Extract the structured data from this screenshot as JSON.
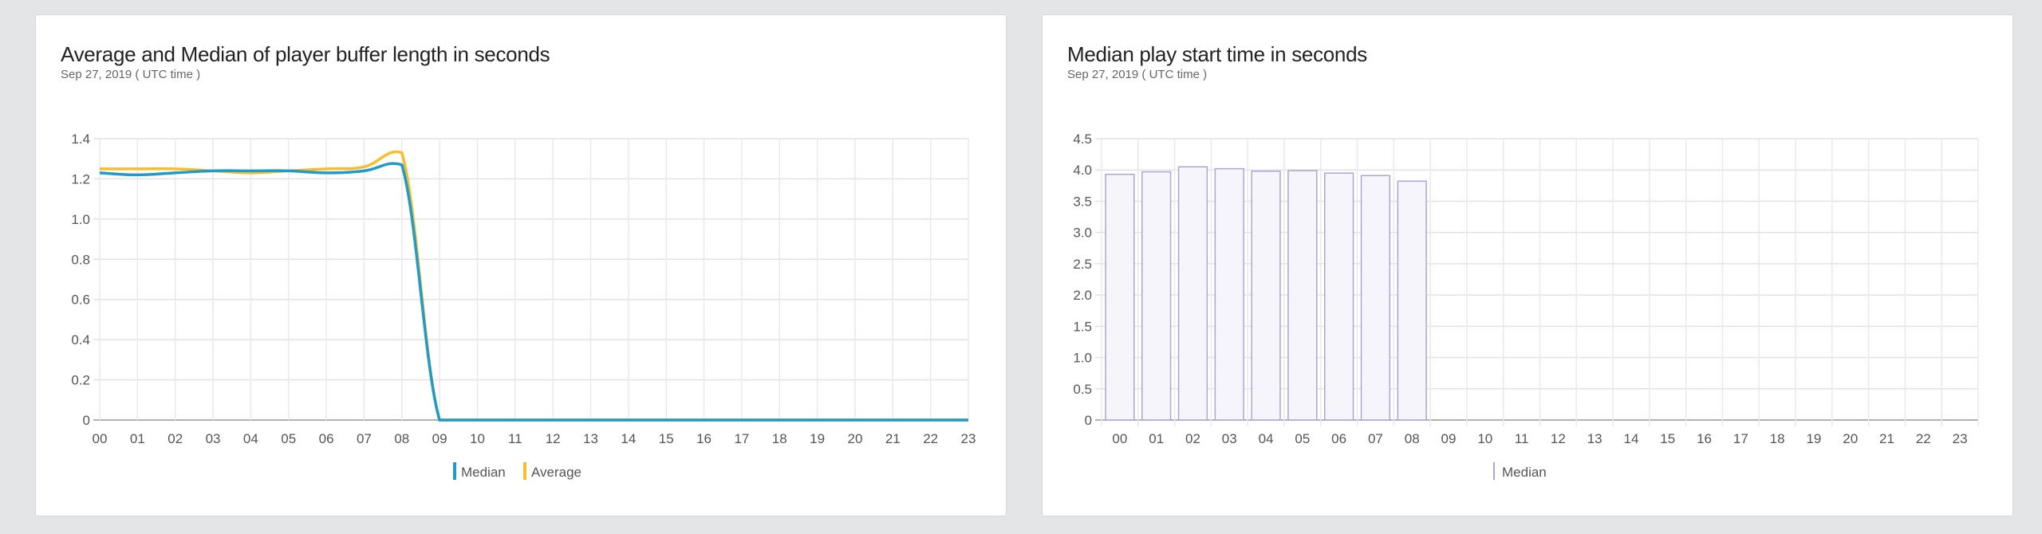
{
  "chart_data": [
    {
      "type": "line",
      "title": "Average and Median of player buffer length in seconds",
      "subtitle": "Sep 27, 2019   ( UTC time )",
      "categories": [
        "00",
        "01",
        "02",
        "03",
        "04",
        "05",
        "06",
        "07",
        "08",
        "09",
        "10",
        "11",
        "12",
        "13",
        "14",
        "15",
        "16",
        "17",
        "18",
        "19",
        "20",
        "21",
        "22",
        "23"
      ],
      "yticks": [
        "0",
        "0.2",
        "0.4",
        "0.6",
        "0.8",
        "1.0",
        "1.2",
        "1.4"
      ],
      "ylim": [
        0,
        1.4
      ],
      "grid": true,
      "legend_position": "bottom",
      "series": [
        {
          "name": "Median",
          "color": "#1f9bc9",
          "values": [
            1.23,
            1.22,
            1.23,
            1.24,
            1.24,
            1.24,
            1.23,
            1.24,
            1.27,
            0,
            0,
            0,
            0,
            0,
            0,
            0,
            0,
            0,
            0,
            0,
            0,
            0,
            0,
            0
          ]
        },
        {
          "name": "Average",
          "color": "#f6be2c",
          "values": [
            1.25,
            1.25,
            1.25,
            1.24,
            1.23,
            1.24,
            1.25,
            1.26,
            1.33,
            0,
            0,
            0,
            0,
            0,
            0,
            0,
            0,
            0,
            0,
            0,
            0,
            0,
            0,
            0
          ]
        }
      ]
    },
    {
      "type": "bar",
      "title": "Median play start time in seconds",
      "subtitle": "Sep 27, 2019   ( UTC time )",
      "categories": [
        "00",
        "01",
        "02",
        "03",
        "04",
        "05",
        "06",
        "07",
        "08",
        "09",
        "10",
        "11",
        "12",
        "13",
        "14",
        "15",
        "16",
        "17",
        "18",
        "19",
        "20",
        "21",
        "22",
        "23"
      ],
      "yticks": [
        "0",
        "0.5",
        "1.0",
        "1.5",
        "2.0",
        "2.5",
        "3.0",
        "3.5",
        "4.0",
        "4.5"
      ],
      "ylim": [
        0,
        4.5
      ],
      "grid": true,
      "legend_position": "bottom",
      "series": [
        {
          "name": "Median",
          "color": "#a9a6d8",
          "fill": "#f6f5fb",
          "values": [
            3.93,
            3.97,
            4.05,
            4.02,
            3.98,
            3.99,
            3.95,
            3.91,
            3.82,
            null,
            null,
            null,
            null,
            null,
            null,
            null,
            null,
            null,
            null,
            null,
            null,
            null,
            null,
            null
          ]
        }
      ]
    }
  ]
}
